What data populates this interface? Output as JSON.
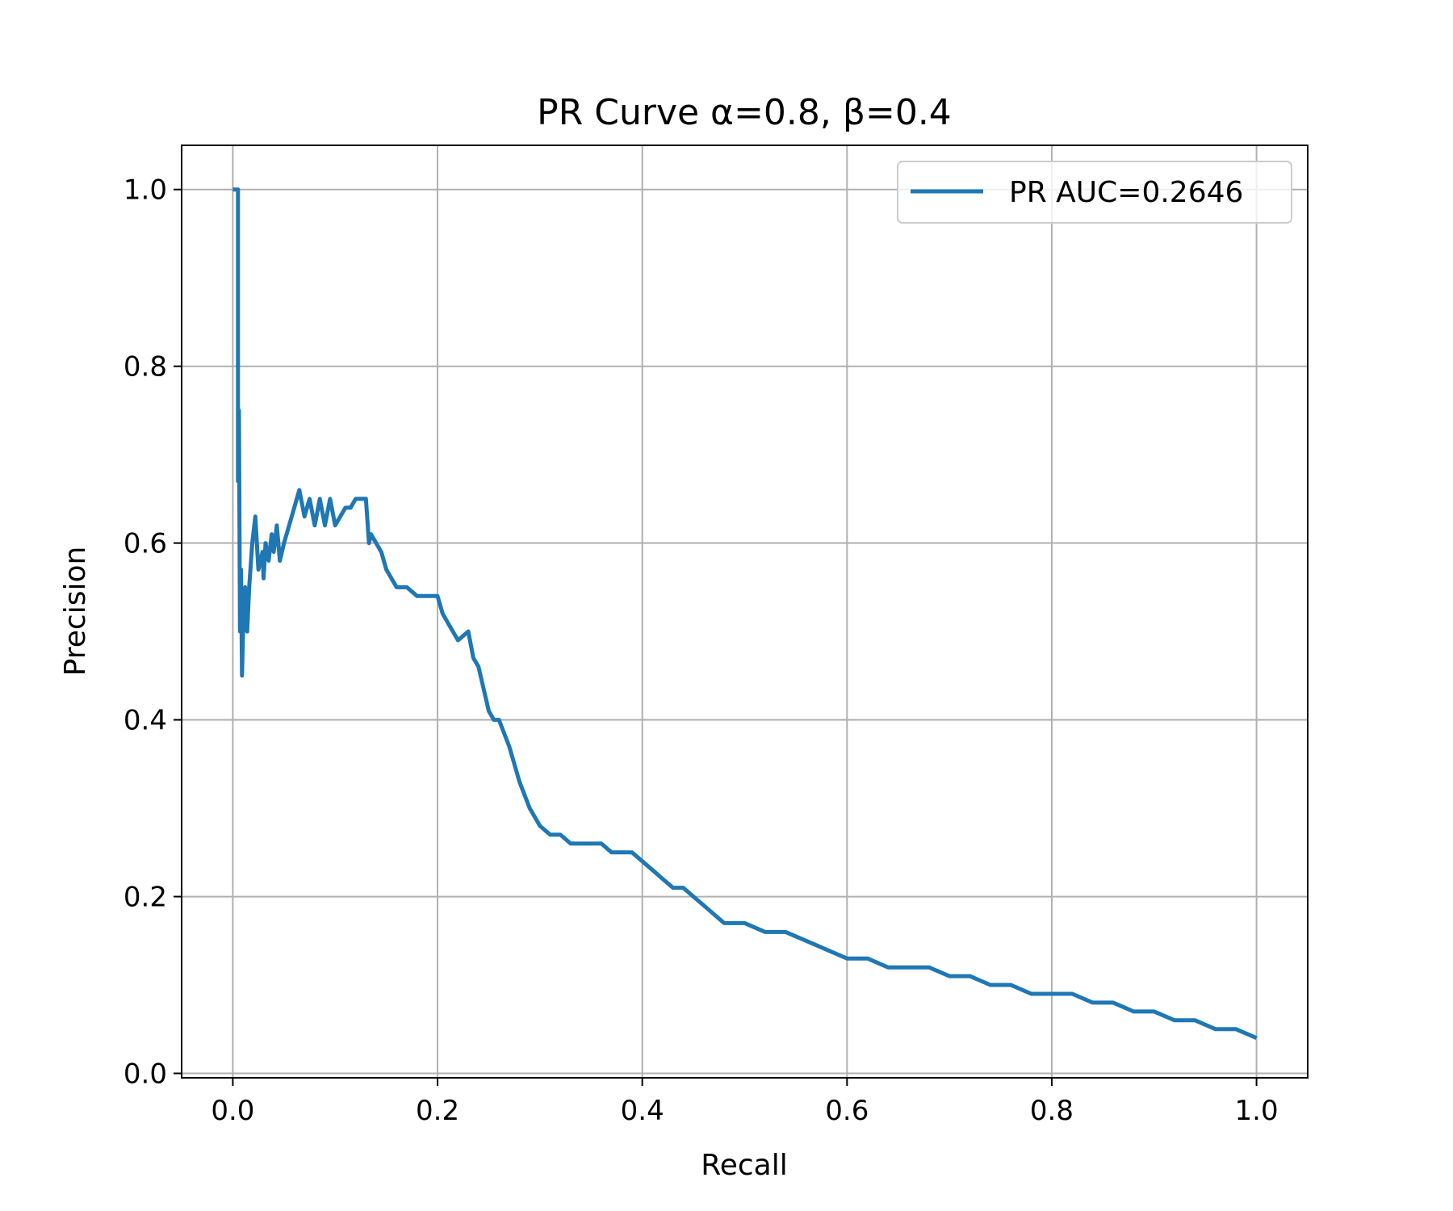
{
  "chart_data": {
    "type": "line",
    "title": "PR Curve α=0.8, β=0.4",
    "xlabel": "Recall",
    "ylabel": "Precision",
    "xlim": [
      -0.05,
      1.05
    ],
    "ylim": [
      -0.005,
      1.05
    ],
    "xticks": [
      0.0,
      0.2,
      0.4,
      0.6,
      0.8,
      1.0
    ],
    "xtick_labels": [
      "0.0",
      "0.2",
      "0.4",
      "0.6",
      "0.8",
      "1.0"
    ],
    "yticks": [
      0.0,
      0.2,
      0.4,
      0.6,
      0.8,
      1.0
    ],
    "ytick_labels": [
      "0.0",
      "0.2",
      "0.4",
      "0.6",
      "0.8",
      "1.0"
    ],
    "grid": true,
    "legend_position": "top-right",
    "series": [
      {
        "name": "PR AUC=0.2646",
        "color": "#1f77b4",
        "x": [
          0.0,
          0.005,
          0.005,
          0.006,
          0.007,
          0.008,
          0.009,
          0.01,
          0.012,
          0.014,
          0.016,
          0.019,
          0.022,
          0.025,
          0.029,
          0.03,
          0.032,
          0.035,
          0.038,
          0.04,
          0.043,
          0.046,
          0.05,
          0.055,
          0.06,
          0.065,
          0.07,
          0.075,
          0.08,
          0.085,
          0.09,
          0.095,
          0.1,
          0.105,
          0.11,
          0.115,
          0.12,
          0.125,
          0.13,
          0.133,
          0.135,
          0.14,
          0.145,
          0.15,
          0.16,
          0.17,
          0.18,
          0.19,
          0.2,
          0.205,
          0.21,
          0.22,
          0.23,
          0.235,
          0.24,
          0.25,
          0.255,
          0.26,
          0.27,
          0.275,
          0.28,
          0.29,
          0.3,
          0.31,
          0.32,
          0.33,
          0.34,
          0.35,
          0.36,
          0.37,
          0.38,
          0.39,
          0.4,
          0.41,
          0.42,
          0.43,
          0.44,
          0.45,
          0.46,
          0.47,
          0.48,
          0.49,
          0.5,
          0.52,
          0.54,
          0.56,
          0.58,
          0.6,
          0.62,
          0.64,
          0.66,
          0.68,
          0.7,
          0.72,
          0.74,
          0.76,
          0.78,
          0.8,
          0.82,
          0.84,
          0.86,
          0.88,
          0.9,
          0.92,
          0.94,
          0.96,
          0.98,
          1.0
        ],
        "y": [
          1.0,
          1.0,
          0.67,
          0.75,
          0.5,
          0.57,
          0.45,
          0.5,
          0.55,
          0.5,
          0.55,
          0.6,
          0.63,
          0.57,
          0.59,
          0.56,
          0.6,
          0.58,
          0.61,
          0.59,
          0.62,
          0.58,
          0.6,
          0.62,
          0.64,
          0.66,
          0.63,
          0.65,
          0.62,
          0.65,
          0.62,
          0.65,
          0.62,
          0.63,
          0.64,
          0.64,
          0.65,
          0.65,
          0.65,
          0.6,
          0.61,
          0.6,
          0.59,
          0.57,
          0.55,
          0.55,
          0.54,
          0.54,
          0.54,
          0.52,
          0.51,
          0.49,
          0.5,
          0.47,
          0.46,
          0.41,
          0.4,
          0.4,
          0.37,
          0.35,
          0.33,
          0.3,
          0.28,
          0.27,
          0.27,
          0.26,
          0.26,
          0.26,
          0.26,
          0.25,
          0.25,
          0.25,
          0.24,
          0.23,
          0.22,
          0.21,
          0.21,
          0.2,
          0.19,
          0.18,
          0.17,
          0.17,
          0.17,
          0.16,
          0.16,
          0.15,
          0.14,
          0.13,
          0.13,
          0.12,
          0.12,
          0.12,
          0.11,
          0.11,
          0.1,
          0.1,
          0.09,
          0.09,
          0.09,
          0.08,
          0.08,
          0.07,
          0.07,
          0.06,
          0.06,
          0.05,
          0.05,
          0.04
        ]
      }
    ]
  }
}
